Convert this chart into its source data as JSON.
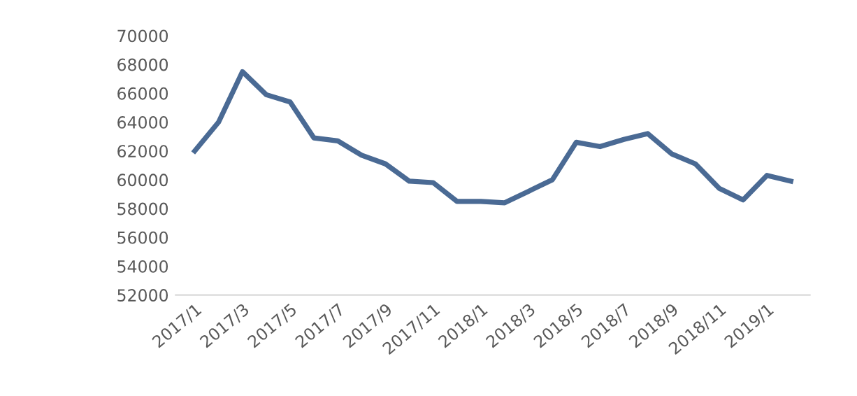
{
  "chart_data": {
    "type": "line",
    "categories": [
      "2017/1",
      null,
      "2017/3",
      null,
      "2017/5",
      null,
      "2017/7",
      null,
      "2017/9",
      null,
      "2017/11",
      null,
      "2018/1",
      null,
      "2018/3",
      null,
      "2018/5",
      null,
      "2018/7",
      null,
      "2018/9",
      null,
      "2018/11",
      null,
      "2019/1",
      null
    ],
    "series": [
      {
        "color": "#4a6a94",
        "values": [
          62000,
          64000,
          67500,
          65900,
          65400,
          62900,
          62700,
          61700,
          61100,
          59900,
          59800,
          58500,
          58500,
          58400,
          59200,
          60000,
          62600,
          62300,
          62800,
          63200,
          61800,
          61100,
          59400,
          58600,
          60300,
          59900
        ]
      }
    ],
    "ylim": [
      52000,
      70000
    ],
    "yticks": [
      52000,
      54000,
      56000,
      58000,
      60000,
      62000,
      64000,
      66000,
      68000,
      70000
    ],
    "grid": false,
    "legend": false,
    "marker": "none",
    "line_style": "solid"
  }
}
